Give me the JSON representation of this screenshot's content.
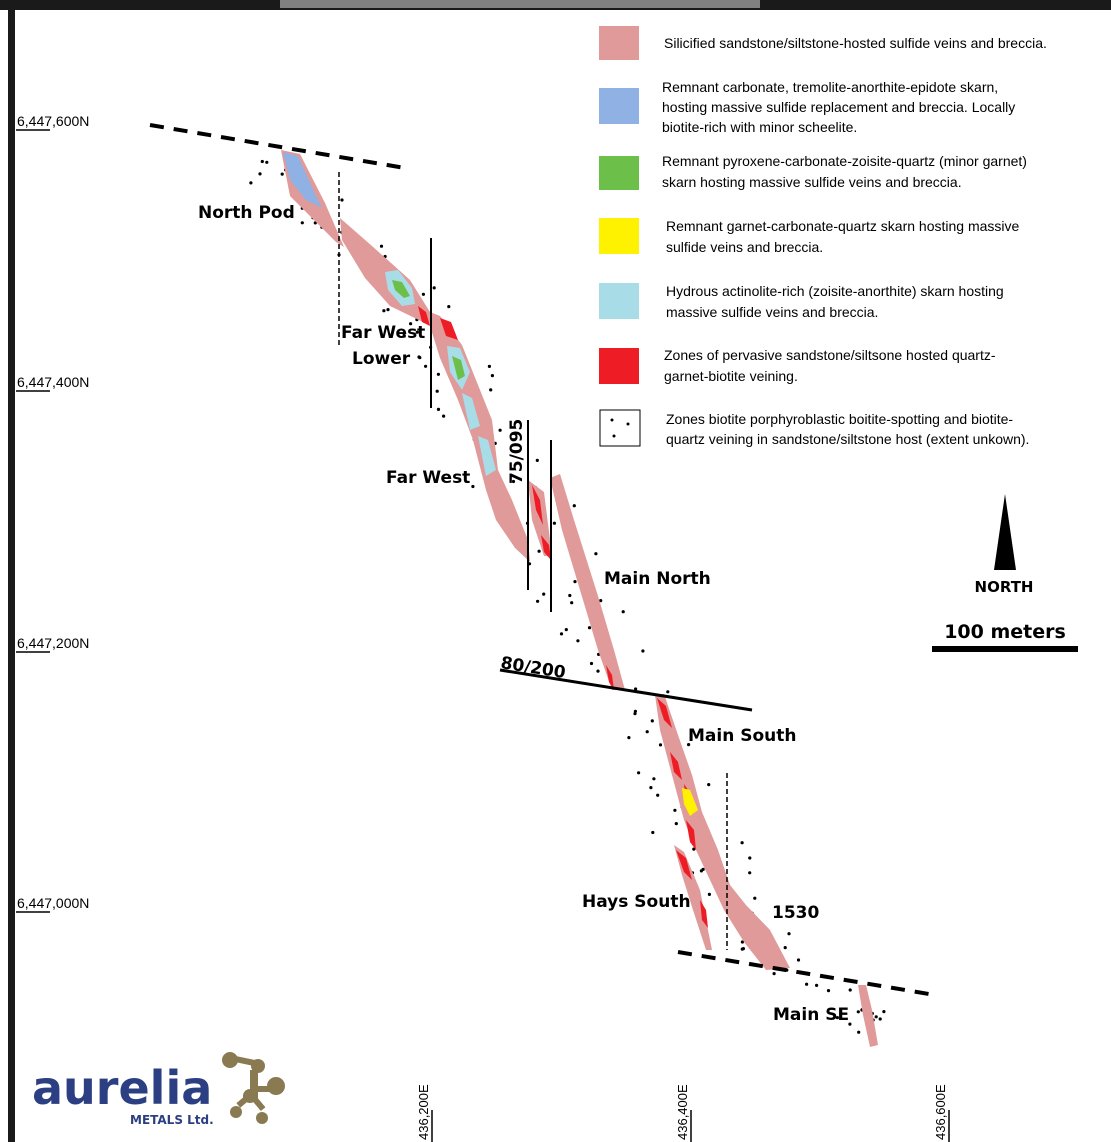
{
  "northings": [
    "6,447,600N",
    "6,447,400N",
    "6,447,200N",
    "6,447,000N"
  ],
  "eastings": [
    "436,200E",
    "436,400E",
    "436,600E"
  ],
  "zones": {
    "north_pod": "North Pod",
    "far_west_lower_1": "Far West",
    "far_west_lower_2": "Lower",
    "far_west": "Far West",
    "main_north": "Main North",
    "main_south": "Main South",
    "hays_south": "Hays South",
    "z1530": "1530",
    "main_se": "Main SE"
  },
  "structures": {
    "s1": "75/095",
    "s2": "80/200"
  },
  "legend": [
    {
      "color": "#e09a9a",
      "lines": [
        "Silicified sandstone/siltstone-hosted sulfide veins and breccia."
      ]
    },
    {
      "color": "#8fb1e3",
      "lines": [
        "Remnant carbonate, tremolite-anorthite-epidote skarn,",
        "hosting massive sulfide replacement and breccia. Locally",
        "biotite-rich with minor scheelite."
      ]
    },
    {
      "color": "#6cc04a",
      "lines": [
        "Remnant pyroxene-carbonate-zoisite-quartz (minor garnet)",
        "skarn hosting massive sulfide veins and breccia."
      ]
    },
    {
      "color": "#fff200",
      "lines": [
        "Remnant garnet-carbonate-quartz skarn hosting massive",
        "sulfide veins and breccia."
      ]
    },
    {
      "color": "#a8dde8",
      "lines": [
        "Hydrous actinolite-rich (zoisite-anorthite) skarn hosting",
        "massive sulfide veins and breccia."
      ]
    },
    {
      "color": "#ee1c24",
      "lines": [
        "Zones of pervasive sandstone/siltsone hosted quartz-",
        "garnet-biotite veining."
      ]
    },
    {
      "color": "dots",
      "lines": [
        "Zones biotite porphyroblastic boitite-spotting and biotite-",
        "quartz veining in sandstone/siltstone host (extent unkown)."
      ]
    }
  ],
  "north_label": "NORTH",
  "scale_label": "100 meters",
  "logo": {
    "name": "aurelia",
    "sub": "METALS Ltd."
  }
}
